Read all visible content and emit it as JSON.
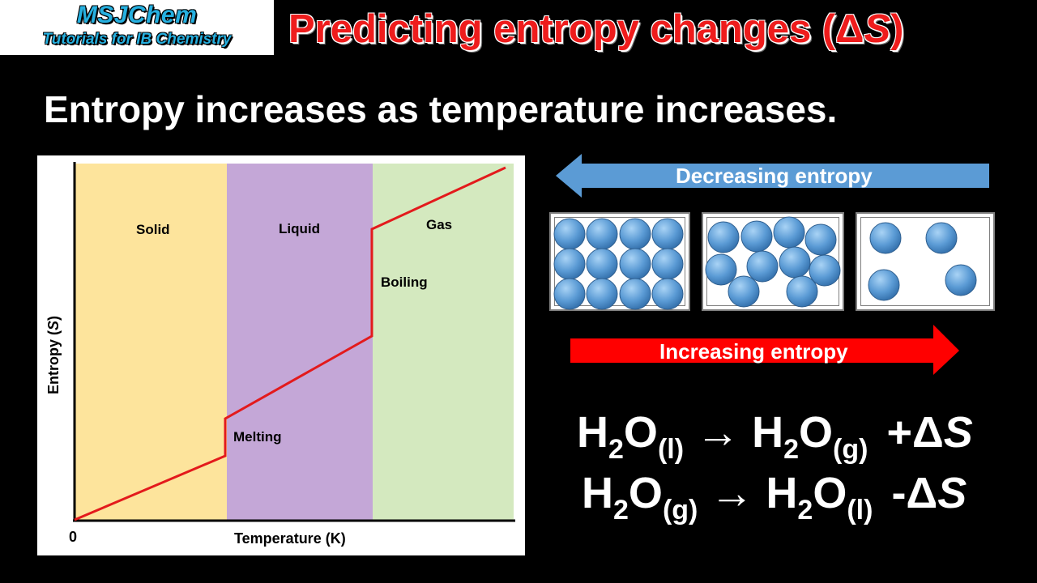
{
  "logo": {
    "name": "MSJChem",
    "tagline": "Tutorials for IB Chemistry"
  },
  "title": {
    "text": "Predicting entropy changes (Δ",
    "symbol": "S",
    "close": ")"
  },
  "subtitle": "Entropy increases as temperature increases.",
  "graph": {
    "phases": [
      "Solid",
      "Liquid",
      "Gas"
    ],
    "phase_colors": [
      "#fde49c",
      "#c4a7d7",
      "#d4e9bf"
    ],
    "transitions": [
      "Melting",
      "Boiling"
    ],
    "xlabel": "Temperature (K)",
    "ylabel_prefix": "Entropy (",
    "ylabel_symbol": "S",
    "ylabel_suffix": ")",
    "origin": "0",
    "line_color": "#e31a1c"
  },
  "arrows": {
    "decreasing": {
      "label": "Decreasing entropy",
      "color": "#5b9bd5"
    },
    "increasing": {
      "label": "Increasing entropy",
      "color": "#ff0000"
    }
  },
  "particle_boxes": [
    "solid-particles",
    "liquid-particles",
    "gas-particles"
  ],
  "equations": [
    {
      "lhs": "H",
      "lhs_sub": "2",
      "lhs_o": "O",
      "lhs_state": "(l)",
      "arrow": "→",
      "rhs": "H",
      "rhs_sub": "2",
      "rhs_o": "O",
      "rhs_state": "(g)",
      "delta": "+Δ",
      "s": "S"
    },
    {
      "lhs": "H",
      "lhs_sub": "2",
      "lhs_o": "O",
      "lhs_state": "(g)",
      "arrow": "→",
      "rhs": "H",
      "rhs_sub": "2",
      "rhs_o": "O",
      "rhs_state": "(l)",
      "delta": "-Δ",
      "s": "S"
    }
  ]
}
